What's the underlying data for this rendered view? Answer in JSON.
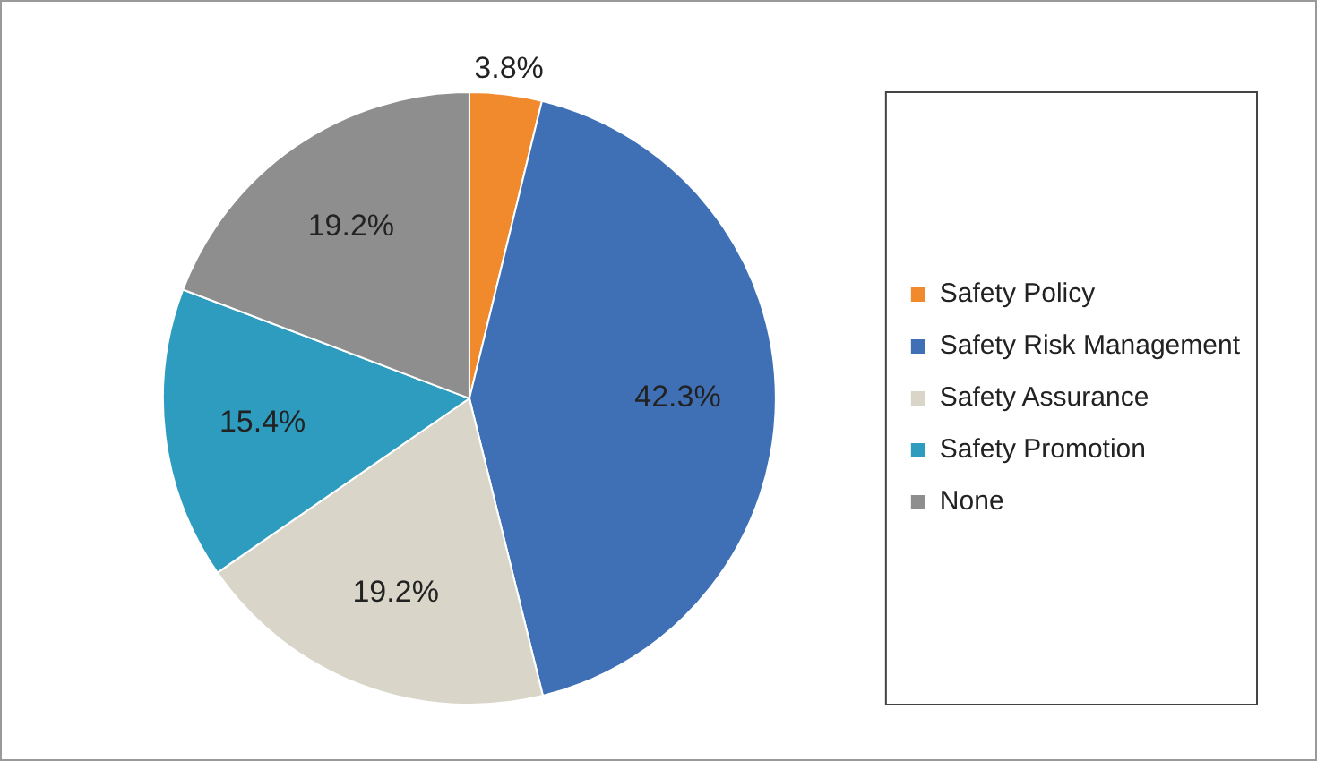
{
  "chart_data": {
    "type": "pie",
    "categories": [
      "Safety Policy",
      "Safety Risk Management",
      "Safety Assurance",
      "Safety Promotion",
      "None"
    ],
    "values": [
      3.8,
      42.3,
      19.2,
      15.4,
      19.2
    ],
    "value_labels": [
      "3.8%",
      "42.3%",
      "19.2%",
      "15.4%",
      "19.2%"
    ],
    "colors": [
      "#f08a2c",
      "#3f70b6",
      "#d9d6c9",
      "#2e9cbf",
      "#8e8e8e"
    ],
    "legend": "right"
  }
}
